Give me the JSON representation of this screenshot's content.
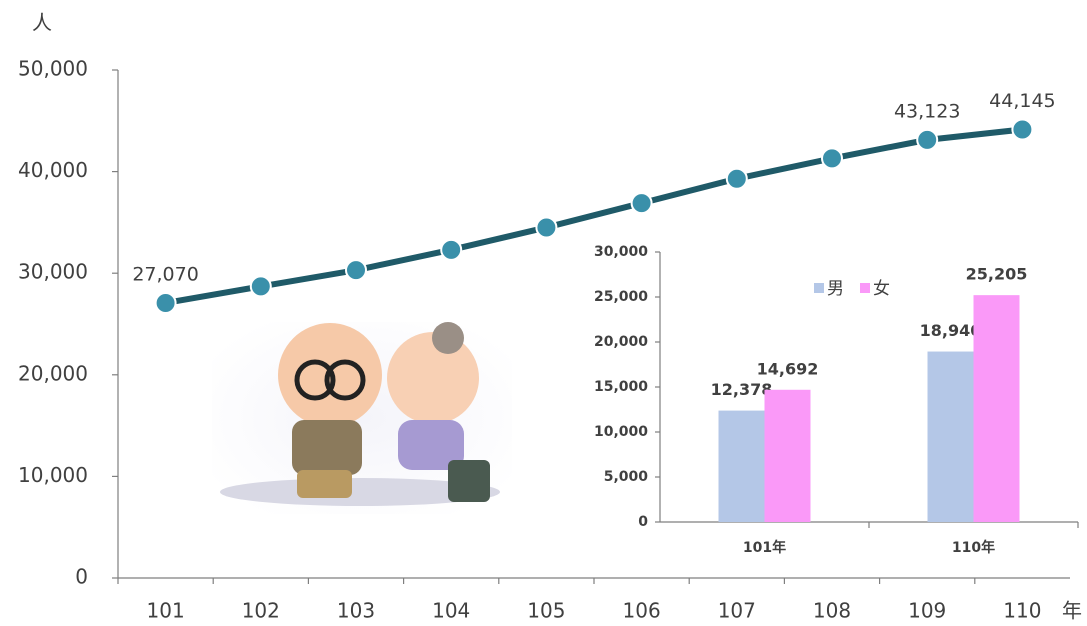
{
  "chart_data": [
    {
      "type": "line",
      "y_label": "人",
      "x_label": "年",
      "categories": [
        "101",
        "102",
        "103",
        "104",
        "105",
        "106",
        "107",
        "108",
        "109",
        "110"
      ],
      "values": [
        27070,
        28700,
        30300,
        32300,
        34500,
        36900,
        39300,
        41300,
        43123,
        44145
      ],
      "value_labels": [
        "27,070",
        null,
        null,
        null,
        null,
        null,
        null,
        null,
        "43,123",
        "44,145"
      ],
      "color": "#1f5a68",
      "marker_color": "#3a90aa",
      "ylim": [
        0,
        50000
      ],
      "yticks": [
        0,
        {
          "value": 10000,
          "label": "10,000"
        },
        {
          "value": 20000,
          "label": "20,000"
        },
        {
          "value": 30000,
          "label": "30,000"
        },
        {
          "value": 40000,
          "label": "40,000"
        },
        {
          "value": 50000,
          "label": "50,000"
        }
      ],
      "grid": false
    },
    {
      "type": "bar",
      "categories": [
        "101年",
        "110年"
      ],
      "series": [
        {
          "name": "男",
          "color": "#b4c7e7",
          "values": [
            12378,
            18940
          ],
          "value_labels": [
            "12,378",
            "18,940"
          ]
        },
        {
          "name": "女",
          "color": "#fa99f8",
          "values": [
            14692,
            25205
          ],
          "value_labels": [
            "14,692",
            "25,205"
          ]
        }
      ],
      "ylim": [
        0,
        30000
      ],
      "yticks": [
        0,
        {
          "value": 5000,
          "label": "5,000"
        },
        {
          "value": 10000,
          "label": "10,000"
        },
        {
          "value": 15000,
          "label": "15,000"
        },
        {
          "value": 20000,
          "label": "20,000"
        },
        {
          "value": 25000,
          "label": "25,000"
        },
        {
          "value": 30000,
          "label": "30,000"
        }
      ],
      "legend": "top",
      "grid": false
    }
  ]
}
